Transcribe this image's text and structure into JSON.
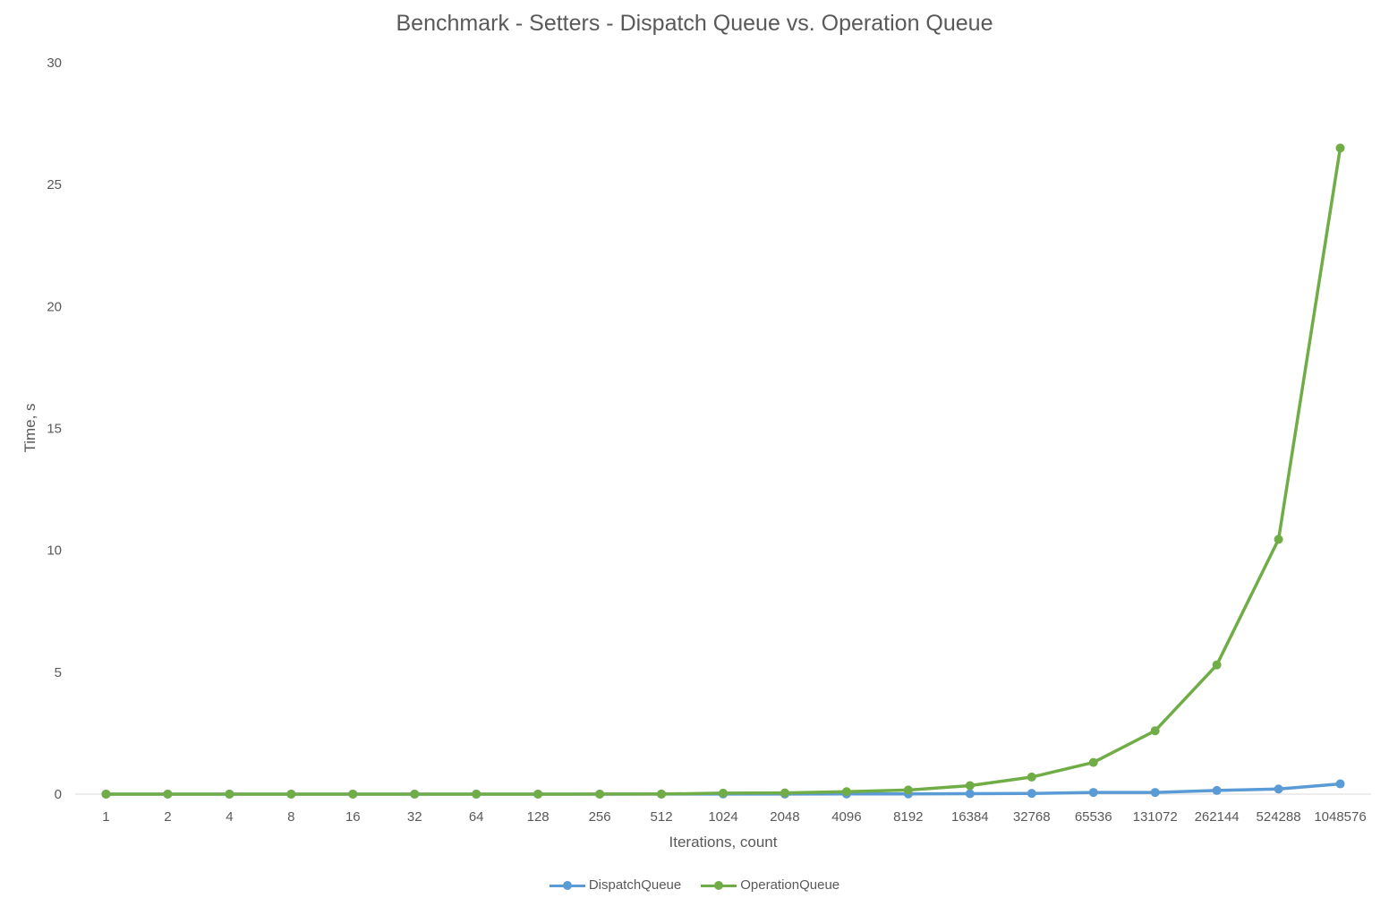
{
  "chart_data": {
    "type": "line",
    "title": "Benchmark - Setters - Dispatch Queue vs. Operation Queue",
    "xlabel": "Iterations, count",
    "ylabel": "Time, s",
    "categories": [
      "1",
      "2",
      "4",
      "8",
      "16",
      "32",
      "64",
      "128",
      "256",
      "512",
      "1024",
      "2048",
      "4096",
      "8192",
      "16384",
      "32768",
      "65536",
      "131072",
      "262144",
      "524288",
      "1048576"
    ],
    "ylim": [
      0,
      30
    ],
    "yticks": [
      0,
      5,
      10,
      15,
      20,
      25,
      30
    ],
    "grid": false,
    "legend_position": "bottom",
    "series": [
      {
        "name": "DispatchQueue",
        "color": "#5b9bd5",
        "values": [
          0.001,
          0.001,
          0.001,
          0.001,
          0.001,
          0.001,
          0.001,
          0.001,
          0.001,
          0.002,
          0.004,
          0.005,
          0.007,
          0.01,
          0.018,
          0.03,
          0.07,
          0.07,
          0.15,
          0.21,
          0.42
        ]
      },
      {
        "name": "OperationQueue",
        "color": "#70ad47",
        "values": [
          0.001,
          0.001,
          0.001,
          0.001,
          0.001,
          0.001,
          0.001,
          0.001,
          0.002,
          0.003,
          0.04,
          0.05,
          0.1,
          0.17,
          0.35,
          0.7,
          1.3,
          2.6,
          5.3,
          10.45,
          26.5
        ]
      }
    ]
  }
}
